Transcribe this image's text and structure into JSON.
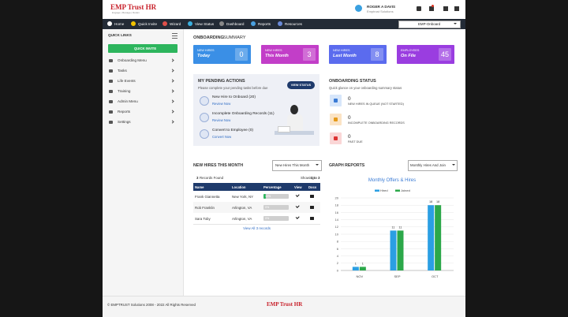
{
  "header": {
    "logo": "EMP Trust HR",
    "tagline": "Engage | Manage | Retain",
    "user_name": "ROGER A DAVIS",
    "company": "Emptrust Solutions"
  },
  "nav": {
    "items": [
      "Home",
      "Quick Invite",
      "Wizard",
      "View Status",
      "Dashboard",
      "Reports",
      "Resources"
    ],
    "selector": "EMP-Onboard"
  },
  "sidebar": {
    "title": "QUICK LINKS",
    "button": "QUICK INVITE",
    "items": [
      "Onboarding Menu",
      "Tasks",
      "Life Events",
      "Training",
      "Admin Menu",
      "Reports",
      "Settings"
    ]
  },
  "summary": {
    "title_bold": "ONBOARDING",
    "title_rest": "SUMMARY",
    "cards": [
      {
        "label": "NEW HIRES",
        "period": "Today",
        "count": 0
      },
      {
        "label": "NEW HIRES",
        "period": "This Month",
        "count": 3
      },
      {
        "label": "NEW HIRES",
        "period": "Last Month",
        "count": 8
      },
      {
        "label": "EMPLOYEES",
        "period": "On File",
        "count": 45
      }
    ]
  },
  "pending": {
    "title": "MY PENDING ACTIONS",
    "subtitle": "Please complete your pending tasks before due",
    "button": "VIEW STATUS",
    "items": [
      {
        "title": "New Hire to Onboard (20)",
        "link": "Review Now"
      },
      {
        "title": "Incomplete Onboarding Records (11)",
        "link": "Review Now"
      },
      {
        "title": "Convert to Employee (0)",
        "link": "Convert Now"
      }
    ]
  },
  "status": {
    "title": "ONBOARDING STATUS",
    "subtitle": "Quick glance on your onboarding summary status",
    "items": [
      {
        "count": 0,
        "label": "NEW HIRES IN QUEUE (NOT STARTED)"
      },
      {
        "count": 0,
        "label": "INCOMPLETE ONBOARDING RECORDS"
      },
      {
        "count": 0,
        "label": "PAST DUE"
      }
    ]
  },
  "new_hires": {
    "title": "NEW HIRES THIS MONTH",
    "filter": "New Hires This Month",
    "records_count": 3,
    "records_text": "Records Found",
    "showing_label": "Showing",
    "showing_range": "1 to 3",
    "columns": [
      "Name",
      "Location",
      "Percentage",
      "View",
      "Docs"
    ],
    "rows": [
      {
        "name": "Frank Giannetta",
        "location": "New York, NY",
        "percentage": {
          "value": 10,
          "label": "10%"
        }
      },
      {
        "name": "Rob Franklin",
        "location": "Arlington, VA",
        "percentage": {
          "value": 0,
          "label": "0%"
        }
      },
      {
        "name": "Sara Toby",
        "location": "Arlington, VA",
        "percentage": {
          "value": 0,
          "label": "0%"
        }
      }
    ],
    "view_all": "View All 3 records"
  },
  "graph_reports": {
    "title": "GRAPH REPORTS",
    "filter": "Monthly Hires And Join",
    "chart_data": {
      "type": "bar",
      "title": "Monthly Offers & Hires",
      "categories": [
        "NOV",
        "SEP",
        "OCT"
      ],
      "series": [
        {
          "name": "Hired",
          "color": "#2b9fe3",
          "values": [
            1,
            11,
            18
          ]
        },
        {
          "name": "Joined",
          "color": "#2ca84a",
          "values": [
            1,
            11,
            18
          ]
        }
      ],
      "ylim": [
        0,
        20
      ],
      "yticks": [
        0,
        2,
        4,
        6,
        8,
        10,
        12,
        14,
        16,
        18,
        20
      ],
      "grid": true,
      "legend": "top"
    }
  },
  "footer": {
    "copyright": "© EMPTRUST Solutions 2008 - 2022 All Rights Reserved",
    "logo": "EMP Trust HR"
  }
}
